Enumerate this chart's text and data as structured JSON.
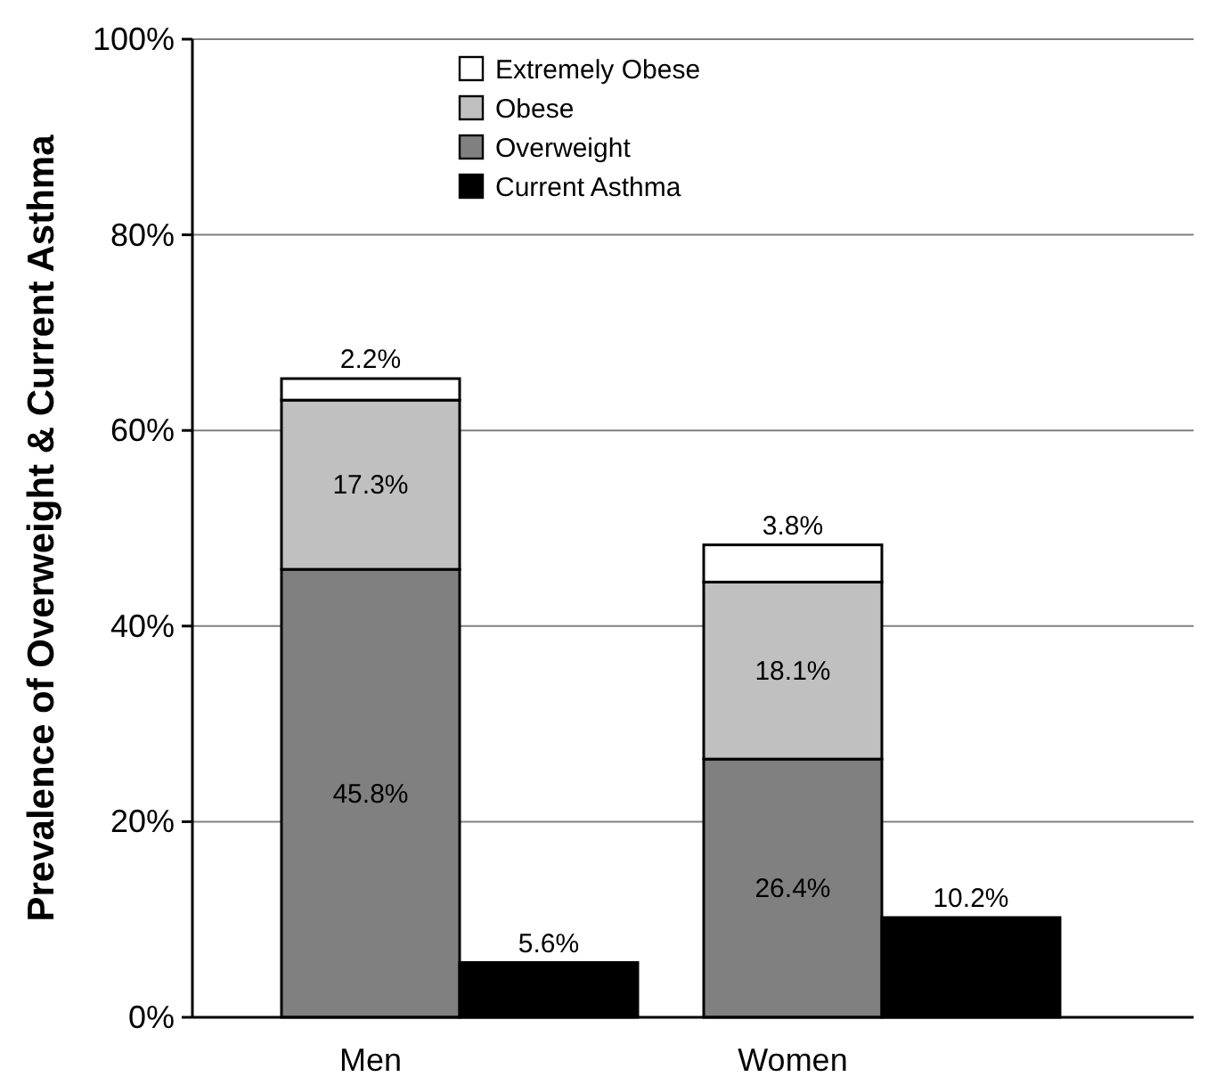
{
  "chart_data": {
    "type": "bar",
    "ylabel": "Prevalence of Overweight & Current Asthma",
    "categories": [
      "Men",
      null,
      "Women",
      null
    ],
    "stacked": true,
    "series": [
      {
        "name": "Overweight",
        "color": "#808080",
        "values": [
          45.8,
          null,
          26.4,
          null
        ],
        "value_labels": [
          "45.8%",
          null,
          "26.4%",
          null
        ]
      },
      {
        "name": "Obese",
        "color": "#c0c0c0",
        "values": [
          17.3,
          null,
          18.1,
          null
        ],
        "value_labels": [
          "17.3%",
          null,
          "18.1%",
          null
        ]
      },
      {
        "name": "Extremely Obese",
        "color": "#ffffff",
        "values": [
          2.2,
          null,
          3.8,
          null
        ],
        "value_labels": [
          "2.2%",
          null,
          "3.8%",
          null
        ]
      },
      {
        "name": "Current Asthma",
        "color": "#000000",
        "values": [
          null,
          5.6,
          null,
          10.2
        ],
        "value_labels": [
          null,
          "5.6%",
          null,
          "10.2%"
        ]
      }
    ],
    "ylim": [
      0,
      100
    ],
    "yticks": [
      {
        "value": 0,
        "label": "0%"
      },
      {
        "value": 20,
        "label": "20%"
      },
      {
        "value": 40,
        "label": "40%"
      },
      {
        "value": 60,
        "label": "60%"
      },
      {
        "value": 80,
        "label": "80%"
      },
      {
        "value": 100,
        "label": "100%"
      }
    ],
    "grid": "y",
    "legend": "top"
  }
}
